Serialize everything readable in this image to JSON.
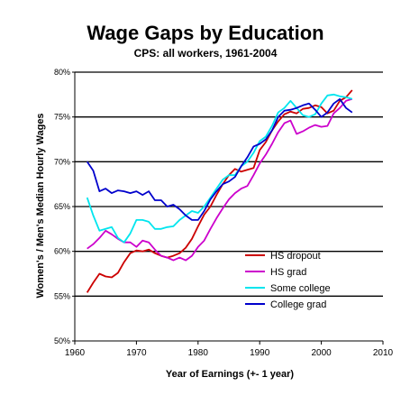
{
  "chart_data": {
    "type": "line",
    "title": "Wage Gaps by Education",
    "subtitle": "CPS: all workers, 1961-2004",
    "xlabel": "Year of Earnings (+- 1 year)",
    "ylabel": "Women's / Men's Median Hourly Wages",
    "xlim": [
      1960,
      2010
    ],
    "ylim": [
      50,
      80
    ],
    "x_ticks": [
      1960,
      1970,
      1980,
      1990,
      2000,
      2010
    ],
    "y_ticks": [
      50,
      55,
      60,
      65,
      70,
      75,
      80
    ],
    "y_tick_labels": [
      "50%",
      "55%",
      "60%",
      "65%",
      "70%",
      "75%",
      "80%"
    ],
    "grid": "horizontal",
    "legend_position": "bottom-right",
    "series": [
      {
        "name": "HS dropout",
        "color": "#cc0000",
        "points": [
          [
            1962,
            55.4
          ],
          [
            1963,
            56.5
          ],
          [
            1964,
            57.5
          ],
          [
            1965,
            57.2
          ],
          [
            1966,
            57.1
          ],
          [
            1967,
            57.6
          ],
          [
            1968,
            58.8
          ],
          [
            1969,
            59.8
          ],
          [
            1970,
            60.1
          ],
          [
            1971,
            60.0
          ],
          [
            1972,
            60.2
          ],
          [
            1973,
            59.8
          ],
          [
            1974,
            59.5
          ],
          [
            1975,
            59.3
          ],
          [
            1976,
            59.5
          ],
          [
            1977,
            59.8
          ],
          [
            1978,
            60.4
          ],
          [
            1979,
            61.4
          ],
          [
            1980,
            62.8
          ],
          [
            1981,
            64.1
          ],
          [
            1982,
            65.0
          ],
          [
            1983,
            66.3
          ],
          [
            1984,
            67.5
          ],
          [
            1985,
            68.5
          ],
          [
            1986,
            69.2
          ],
          [
            1987,
            68.9
          ],
          [
            1988,
            69.1
          ],
          [
            1989,
            69.3
          ],
          [
            1990,
            71.3
          ],
          [
            1991,
            72.2
          ],
          [
            1992,
            73.5
          ],
          [
            1993,
            74.5
          ],
          [
            1994,
            75.3
          ],
          [
            1995,
            75.6
          ],
          [
            1996,
            75.4
          ],
          [
            1997,
            75.9
          ],
          [
            1998,
            76.0
          ],
          [
            1999,
            76.3
          ],
          [
            2000,
            76.1
          ],
          [
            2001,
            75.4
          ],
          [
            2002,
            75.7
          ],
          [
            2003,
            76.8
          ],
          [
            2004,
            77.2
          ],
          [
            2005,
            78.0
          ]
        ]
      },
      {
        "name": "HS grad",
        "color": "#cc00cc",
        "points": [
          [
            1962,
            60.3
          ],
          [
            1963,
            60.8
          ],
          [
            1964,
            61.5
          ],
          [
            1965,
            62.3
          ],
          [
            1966,
            61.9
          ],
          [
            1967,
            61.4
          ],
          [
            1968,
            61.0
          ],
          [
            1969,
            61.0
          ],
          [
            1970,
            60.5
          ],
          [
            1971,
            61.2
          ],
          [
            1972,
            61.0
          ],
          [
            1973,
            60.2
          ],
          [
            1974,
            59.5
          ],
          [
            1975,
            59.3
          ],
          [
            1976,
            59.0
          ],
          [
            1977,
            59.3
          ],
          [
            1978,
            59.0
          ],
          [
            1979,
            59.5
          ],
          [
            1980,
            60.5
          ],
          [
            1981,
            61.2
          ],
          [
            1982,
            62.5
          ],
          [
            1983,
            63.7
          ],
          [
            1984,
            64.8
          ],
          [
            1985,
            65.8
          ],
          [
            1986,
            66.5
          ],
          [
            1987,
            67.0
          ],
          [
            1988,
            67.3
          ],
          [
            1989,
            68.5
          ],
          [
            1990,
            69.8
          ],
          [
            1991,
            70.8
          ],
          [
            1992,
            72.0
          ],
          [
            1993,
            73.3
          ],
          [
            1994,
            74.3
          ],
          [
            1995,
            74.6
          ],
          [
            1996,
            73.1
          ],
          [
            1997,
            73.4
          ],
          [
            1998,
            73.8
          ],
          [
            1999,
            74.1
          ],
          [
            2000,
            73.9
          ],
          [
            2001,
            74.0
          ],
          [
            2002,
            75.4
          ],
          [
            2003,
            76.0
          ],
          [
            2004,
            76.8
          ],
          [
            2005,
            77.0
          ]
        ]
      },
      {
        "name": "Some college",
        "color": "#00e5ee",
        "points": [
          [
            1962,
            66.0
          ],
          [
            1963,
            64.0
          ],
          [
            1964,
            62.3
          ],
          [
            1965,
            62.5
          ],
          [
            1966,
            62.7
          ],
          [
            1967,
            61.5
          ],
          [
            1968,
            61.0
          ],
          [
            1969,
            62.0
          ],
          [
            1970,
            63.5
          ],
          [
            1971,
            63.5
          ],
          [
            1972,
            63.3
          ],
          [
            1973,
            62.5
          ],
          [
            1974,
            62.5
          ],
          [
            1975,
            62.7
          ],
          [
            1976,
            62.8
          ],
          [
            1977,
            63.5
          ],
          [
            1978,
            64.0
          ],
          [
            1979,
            64.5
          ],
          [
            1980,
            64.3
          ],
          [
            1981,
            65.0
          ],
          [
            1982,
            66.0
          ],
          [
            1983,
            67.0
          ],
          [
            1984,
            68.0
          ],
          [
            1985,
            68.5
          ],
          [
            1986,
            68.5
          ],
          [
            1987,
            69.5
          ],
          [
            1988,
            70.0
          ],
          [
            1989,
            71.0
          ],
          [
            1990,
            72.3
          ],
          [
            1991,
            72.8
          ],
          [
            1992,
            74.0
          ],
          [
            1993,
            75.5
          ],
          [
            1994,
            76.0
          ],
          [
            1995,
            76.8
          ],
          [
            1996,
            76.0
          ],
          [
            1997,
            75.2
          ],
          [
            1998,
            75.0
          ],
          [
            1999,
            75.3
          ],
          [
            2000,
            76.5
          ],
          [
            2001,
            77.4
          ],
          [
            2002,
            77.5
          ],
          [
            2003,
            77.3
          ],
          [
            2004,
            77.2
          ],
          [
            2005,
            77.0
          ]
        ]
      },
      {
        "name": "College grad",
        "color": "#0000cc",
        "points": [
          [
            1962,
            70.0
          ],
          [
            1963,
            69.0
          ],
          [
            1964,
            66.7
          ],
          [
            1965,
            67.0
          ],
          [
            1966,
            66.5
          ],
          [
            1967,
            66.8
          ],
          [
            1968,
            66.7
          ],
          [
            1969,
            66.5
          ],
          [
            1970,
            66.7
          ],
          [
            1971,
            66.3
          ],
          [
            1972,
            66.7
          ],
          [
            1973,
            65.7
          ],
          [
            1974,
            65.7
          ],
          [
            1975,
            65.0
          ],
          [
            1976,
            65.2
          ],
          [
            1977,
            64.7
          ],
          [
            1978,
            64.0
          ],
          [
            1979,
            63.5
          ],
          [
            1980,
            63.5
          ],
          [
            1981,
            64.5
          ],
          [
            1982,
            65.8
          ],
          [
            1983,
            66.7
          ],
          [
            1984,
            67.5
          ],
          [
            1985,
            67.8
          ],
          [
            1986,
            68.3
          ],
          [
            1987,
            69.5
          ],
          [
            1988,
            70.5
          ],
          [
            1989,
            71.7
          ],
          [
            1990,
            72.0
          ],
          [
            1991,
            72.5
          ],
          [
            1992,
            73.5
          ],
          [
            1993,
            75.0
          ],
          [
            1994,
            75.7
          ],
          [
            1995,
            75.8
          ],
          [
            1996,
            76.0
          ],
          [
            1997,
            76.3
          ],
          [
            1998,
            76.5
          ],
          [
            1999,
            75.8
          ],
          [
            2000,
            75.0
          ],
          [
            2001,
            75.5
          ],
          [
            2002,
            76.5
          ],
          [
            2003,
            77.0
          ],
          [
            2004,
            76.0
          ],
          [
            2005,
            75.5
          ]
        ]
      }
    ]
  }
}
